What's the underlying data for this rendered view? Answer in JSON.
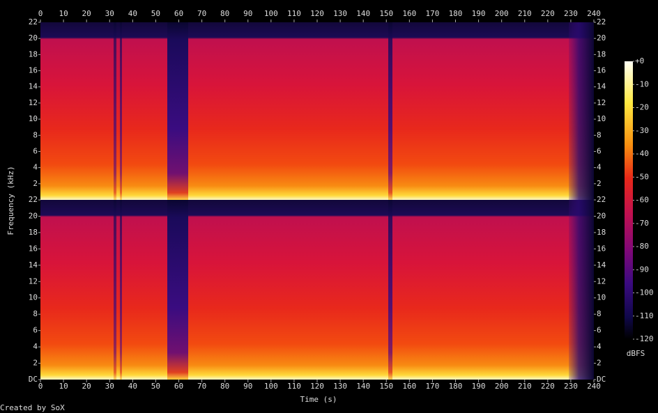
{
  "chart_data": {
    "type": "spectrogram",
    "xlabel": "Time (s)",
    "ylabel": "Frequency (kHz)",
    "xlim": [
      0,
      240
    ],
    "xticks": [
      0,
      10,
      20,
      30,
      40,
      50,
      60,
      70,
      80,
      90,
      100,
      110,
      120,
      130,
      140,
      150,
      160,
      170,
      180,
      190,
      200,
      210,
      220,
      230,
      240
    ],
    "channels": [
      {
        "ylim": [
          0,
          22
        ],
        "yticks": [
          2,
          4,
          6,
          8,
          10,
          12,
          14,
          16,
          18,
          20,
          22
        ]
      },
      {
        "ylim": [
          0,
          22
        ],
        "yticks": [
          {
            "value": 0,
            "label": "DC"
          },
          2,
          4,
          6,
          8,
          10,
          12,
          14,
          16,
          18,
          20,
          22
        ]
      }
    ],
    "colorbar": {
      "label": "dBFS",
      "lim": [
        -120,
        0
      ],
      "ticks": [
        {
          "value": 0,
          "label": "+0"
        },
        -10,
        -20,
        -30,
        -40,
        -50,
        -60,
        -70,
        -80,
        -90,
        -100,
        -110,
        -120
      ]
    },
    "credit": "Created by SoX"
  }
}
